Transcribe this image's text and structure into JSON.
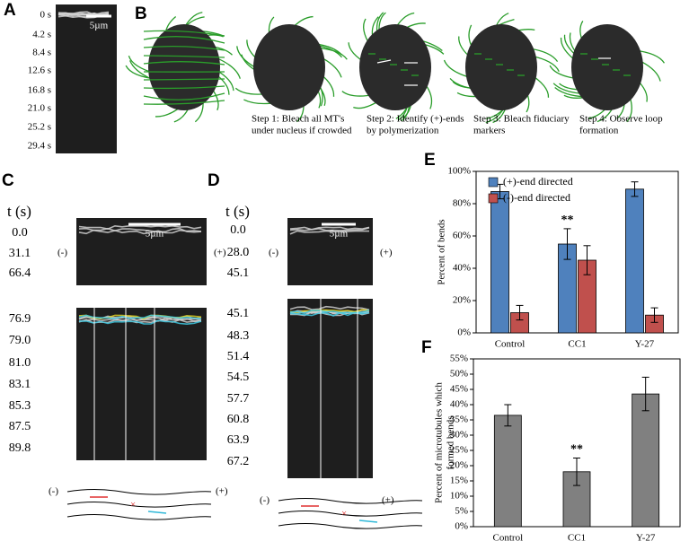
{
  "panel_a": {
    "label": "A",
    "times": [
      "0 s",
      "4.2 s",
      "8.4 s",
      "12.6 s",
      "16.8 s",
      "21.0 s",
      "25.2 s",
      "29.4 s"
    ],
    "scale_bar": "5µm"
  },
  "panel_b": {
    "label": "B",
    "steps": [
      [
        "Step 1: Bleach all MT's",
        "under nucleus if crowded"
      ],
      [
        "Step 2: Identify (+)-ends",
        "by polymerization"
      ],
      [
        "Step 3: Bleach fiduciary",
        "markers"
      ],
      [
        "Step 4: Observe loop",
        "formation"
      ]
    ]
  },
  "panel_c": {
    "label": "C",
    "t_header": "t (s)",
    "times_top": [
      "0.0",
      "31.1",
      "66.4"
    ],
    "times_bottom": [
      "76.9",
      "79.0",
      "81.0",
      "83.1",
      "85.3",
      "87.5",
      "89.8"
    ],
    "scale_bar": "5µm",
    "minus": "(-)",
    "plus": "(+)",
    "diagram_minus": "(-)",
    "diagram_plus": "(+)"
  },
  "panel_d": {
    "label": "D",
    "t_header": "t (s)",
    "times_top": [
      "0.0",
      "28.0",
      "45.1"
    ],
    "times_bottom": [
      "45.1",
      "48.3",
      "51.4",
      "54.5",
      "57.7",
      "60.8",
      "63.9",
      "67.2"
    ],
    "scale_bar": "5µm",
    "minus": "(-)",
    "plus": "(+)",
    "diagram_minus": "(-)",
    "diagram_plus": "(+)"
  },
  "chart_data": [
    {
      "type": "bar",
      "panel": "E",
      "ylabel": [
        "Percent of bends"
      ],
      "categories": [
        "Control",
        "CC1",
        "Y-27"
      ],
      "series": [
        {
          "name": "(+)-end directed",
          "color": "#4f81bd",
          "values": [
            87.5,
            55,
            89
          ],
          "errors": [
            4.5,
            9.5,
            4.5
          ]
        },
        {
          "name": "(-)-end directed",
          "color": "#c0504d",
          "values": [
            12.5,
            45,
            11
          ],
          "errors": [
            4.5,
            9,
            4.5
          ]
        }
      ],
      "ylim": [
        0,
        100
      ],
      "yticks": [
        {
          "value": 0,
          "label": "0%"
        },
        {
          "value": 20,
          "label": "20%"
        },
        {
          "value": 40,
          "label": "40%"
        },
        {
          "value": 60,
          "label": "60%"
        },
        {
          "value": 80,
          "label": "80%"
        },
        {
          "value": 100,
          "label": "100%"
        }
      ],
      "legend": "upper left",
      "annotations": [
        {
          "text": "**",
          "category": "CC1"
        }
      ]
    },
    {
      "type": "bar",
      "panel": "F",
      "ylabel": [
        "Percent of microtubules which",
        "formed bends"
      ],
      "categories": [
        "Control",
        "CC1",
        "Y-27"
      ],
      "values": [
        36.5,
        18,
        43.5
      ],
      "errors": [
        3.5,
        4.5,
        5.5
      ],
      "color": "#808080",
      "ylim": [
        0,
        55
      ],
      "yticks": [
        {
          "value": 0,
          "label": "0%"
        },
        {
          "value": 5,
          "label": "5%"
        },
        {
          "value": 10,
          "label": "10%"
        },
        {
          "value": 15,
          "label": "15%"
        },
        {
          "value": 20,
          "label": "20%"
        },
        {
          "value": 25,
          "label": "25%"
        },
        {
          "value": 30,
          "label": "30%"
        },
        {
          "value": 35,
          "label": "35%"
        },
        {
          "value": 40,
          "label": "40%"
        },
        {
          "value": 45,
          "label": "45%"
        },
        {
          "value": 50,
          "label": "50%"
        },
        {
          "value": 55,
          "label": "55%"
        }
      ],
      "annotations": [
        {
          "text": "**",
          "category": "CC1"
        }
      ]
    }
  ]
}
